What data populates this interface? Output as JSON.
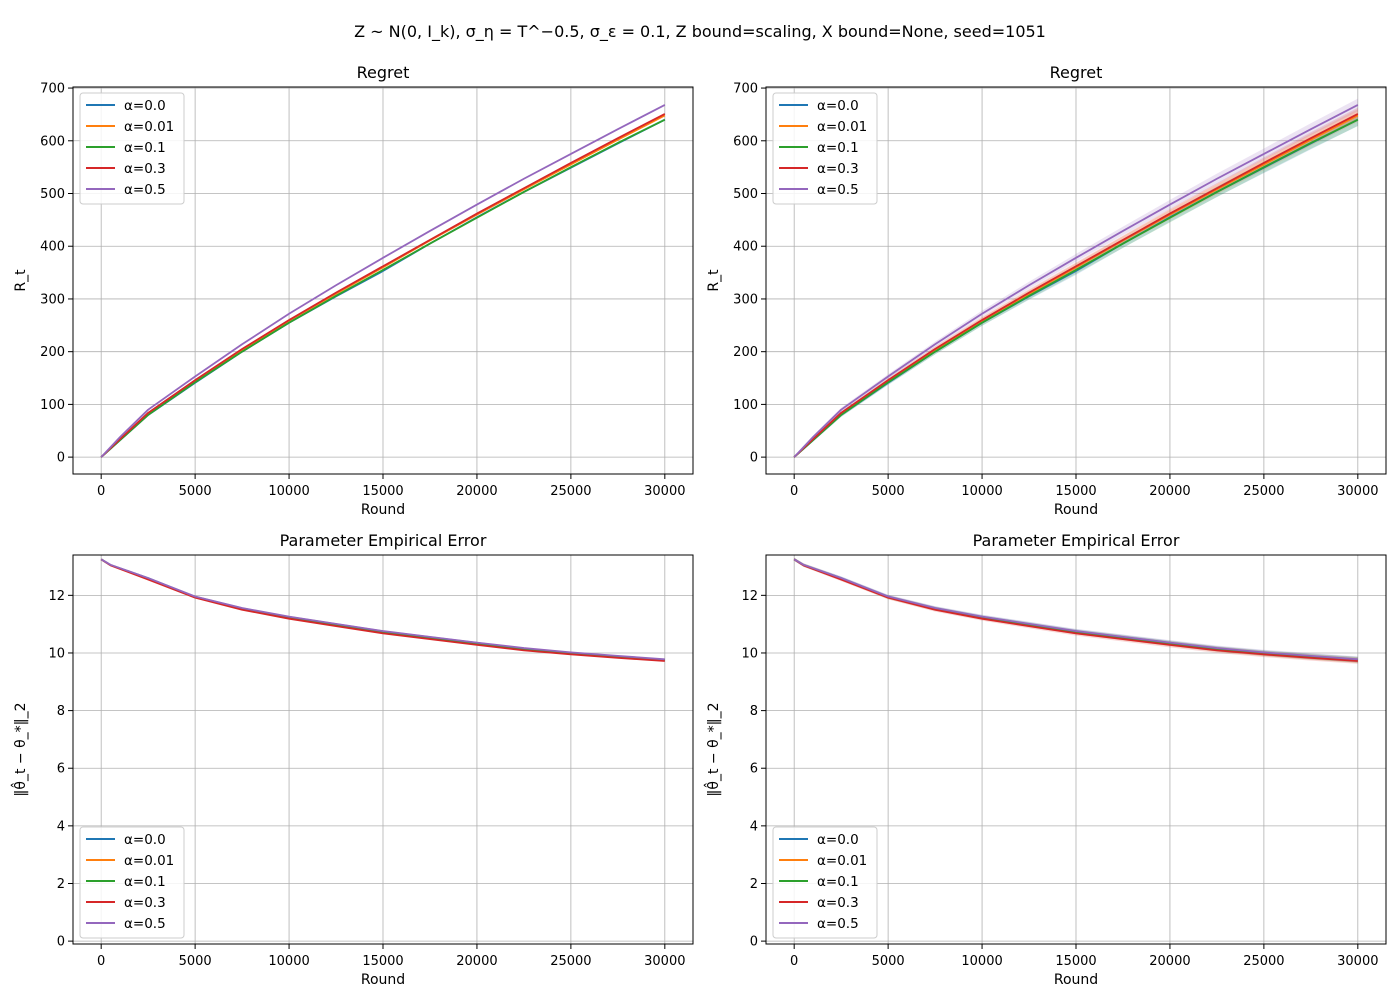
{
  "figure": {
    "suptitle": "Z ~ N(0, I_k), σ_η = T^−0.5, σ_ε = 0.1, Z bound=scaling, X bound=None, seed=1051"
  },
  "colors": {
    "a0": "#1f77b4",
    "a001": "#ff7f0e",
    "a01": "#2ca02c",
    "a03": "#d62728",
    "a05": "#9467bd",
    "grid": "#b0b0b0"
  },
  "chart_data": [
    {
      "type": "line",
      "title": "Regret",
      "xlabel": "Round",
      "ylabel": "R_t",
      "xlim": [
        -1500,
        31500
      ],
      "ylim": [
        -32,
        702
      ],
      "xticks": [
        0,
        5000,
        10000,
        15000,
        20000,
        25000,
        30000
      ],
      "yticks": [
        0,
        100,
        200,
        300,
        400,
        500,
        600,
        700
      ],
      "grid": true,
      "legend": "upper-left",
      "band": false,
      "x": [
        0,
        1000,
        2500,
        5000,
        7500,
        10000,
        12500,
        15000,
        17500,
        20000,
        22500,
        25000,
        27500,
        30000
      ],
      "series": [
        {
          "name": "α=0.0",
          "color": "#1f77b4",
          "values": [
            0,
            32,
            80,
            141,
            200,
            255,
            305,
            353,
            405,
            455,
            503,
            549,
            595,
            640
          ]
        },
        {
          "name": "α=0.01",
          "color": "#ff7f0e",
          "values": [
            0,
            33,
            82,
            144,
            203,
            259,
            310,
            360,
            411,
            460,
            508,
            555,
            602,
            648
          ]
        },
        {
          "name": "α=0.1",
          "color": "#2ca02c",
          "values": [
            0,
            32,
            80,
            142,
            200,
            255,
            306,
            355,
            405,
            454,
            503,
            550,
            596,
            640
          ]
        },
        {
          "name": "α=0.3",
          "color": "#d62728",
          "values": [
            0,
            34,
            84,
            146,
            205,
            260,
            312,
            362,
            412,
            462,
            510,
            558,
            605,
            651
          ]
        },
        {
          "name": "α=0.5",
          "color": "#9467bd",
          "values": [
            0,
            38,
            90,
            153,
            214,
            272,
            326,
            378,
            429,
            479,
            528,
            575,
            622,
            668
          ]
        }
      ]
    },
    {
      "type": "line",
      "title": "Regret",
      "xlabel": "Round",
      "ylabel": "R_t",
      "xlim": [
        -1500,
        31500
      ],
      "ylim": [
        -32,
        702
      ],
      "xticks": [
        0,
        5000,
        10000,
        15000,
        20000,
        25000,
        30000
      ],
      "yticks": [
        0,
        100,
        200,
        300,
        400,
        500,
        600,
        700
      ],
      "grid": true,
      "legend": "upper-left",
      "band": true,
      "x": [
        0,
        1000,
        2500,
        5000,
        7500,
        10000,
        12500,
        15000,
        17500,
        20000,
        22500,
        25000,
        27500,
        30000
      ],
      "series": [
        {
          "name": "α=0.0",
          "color": "#1f77b4",
          "values": [
            0,
            32,
            80,
            141,
            200,
            255,
            305,
            353,
            405,
            455,
            503,
            549,
            595,
            640
          ]
        },
        {
          "name": "α=0.01",
          "color": "#ff7f0e",
          "values": [
            0,
            33,
            82,
            144,
            203,
            259,
            310,
            360,
            411,
            460,
            508,
            555,
            602,
            648
          ]
        },
        {
          "name": "α=0.1",
          "color": "#2ca02c",
          "values": [
            0,
            32,
            80,
            142,
            200,
            255,
            306,
            355,
            405,
            454,
            503,
            550,
            596,
            640
          ]
        },
        {
          "name": "α=0.3",
          "color": "#d62728",
          "values": [
            0,
            34,
            84,
            146,
            205,
            260,
            312,
            362,
            412,
            462,
            510,
            558,
            605,
            651
          ]
        },
        {
          "name": "α=0.5",
          "color": "#9467bd",
          "values": [
            0,
            38,
            90,
            153,
            214,
            272,
            326,
            378,
            429,
            479,
            528,
            575,
            622,
            668
          ]
        }
      ]
    },
    {
      "type": "line",
      "title": "Parameter Empirical Error",
      "xlabel": "Round",
      "ylabel": "‖θ̂_t − θ_*‖_2",
      "xlim": [
        -1500,
        31500
      ],
      "ylim": [
        -0.1,
        13.4
      ],
      "xticks": [
        0,
        5000,
        10000,
        15000,
        20000,
        25000,
        30000
      ],
      "yticks": [
        0,
        2,
        4,
        6,
        8,
        10,
        12
      ],
      "grid": true,
      "legend": "lower-left",
      "band": false,
      "x": [
        0,
        500,
        2500,
        5000,
        7500,
        10000,
        12500,
        15000,
        17500,
        20000,
        22500,
        25000,
        27500,
        30000
      ],
      "series": [
        {
          "name": "α=0.0",
          "color": "#1f77b4",
          "values": [
            13.25,
            13.05,
            12.6,
            11.95,
            11.55,
            11.25,
            11.0,
            10.75,
            10.55,
            10.35,
            10.15,
            10.0,
            9.88,
            9.77
          ]
        },
        {
          "name": "α=0.01",
          "color": "#ff7f0e",
          "values": [
            13.25,
            13.05,
            12.58,
            11.93,
            11.53,
            11.22,
            10.97,
            10.72,
            10.52,
            10.32,
            10.13,
            9.98,
            9.86,
            9.75
          ]
        },
        {
          "name": "α=0.1",
          "color": "#2ca02c",
          "values": [
            13.25,
            13.05,
            12.58,
            11.94,
            11.54,
            11.23,
            10.98,
            10.73,
            10.53,
            10.33,
            10.14,
            9.99,
            9.87,
            9.76
          ]
        },
        {
          "name": "α=0.3",
          "color": "#d62728",
          "values": [
            13.25,
            13.04,
            12.55,
            11.92,
            11.5,
            11.19,
            10.93,
            10.68,
            10.48,
            10.28,
            10.09,
            9.95,
            9.83,
            9.72
          ]
        },
        {
          "name": "α=0.5",
          "color": "#9467bd",
          "values": [
            13.25,
            13.06,
            12.6,
            11.96,
            11.56,
            11.26,
            11.01,
            10.76,
            10.56,
            10.36,
            10.17,
            10.02,
            9.9,
            9.78
          ]
        }
      ]
    },
    {
      "type": "line",
      "title": "Parameter Empirical Error",
      "xlabel": "Round",
      "ylabel": "‖θ̂_t − θ_*‖_2",
      "xlim": [
        -1500,
        31500
      ],
      "ylim": [
        -0.1,
        13.4
      ],
      "xticks": [
        0,
        5000,
        10000,
        15000,
        20000,
        25000,
        30000
      ],
      "yticks": [
        0,
        2,
        4,
        6,
        8,
        10,
        12
      ],
      "grid": true,
      "legend": "lower-left",
      "band": true,
      "x": [
        0,
        500,
        2500,
        5000,
        7500,
        10000,
        12500,
        15000,
        17500,
        20000,
        22500,
        25000,
        27500,
        30000
      ],
      "series": [
        {
          "name": "α=0.0",
          "color": "#1f77b4",
          "values": [
            13.25,
            13.05,
            12.6,
            11.95,
            11.55,
            11.25,
            11.0,
            10.75,
            10.55,
            10.35,
            10.15,
            10.0,
            9.88,
            9.77
          ]
        },
        {
          "name": "α=0.01",
          "color": "#ff7f0e",
          "values": [
            13.25,
            13.05,
            12.58,
            11.93,
            11.53,
            11.22,
            10.97,
            10.72,
            10.52,
            10.32,
            10.13,
            9.98,
            9.86,
            9.75
          ]
        },
        {
          "name": "α=0.1",
          "color": "#2ca02c",
          "values": [
            13.25,
            13.05,
            12.58,
            11.94,
            11.54,
            11.23,
            10.98,
            10.73,
            10.53,
            10.33,
            10.14,
            9.99,
            9.87,
            9.76
          ]
        },
        {
          "name": "α=0.3",
          "color": "#d62728",
          "values": [
            13.25,
            13.04,
            12.55,
            11.92,
            11.5,
            11.19,
            10.93,
            10.68,
            10.48,
            10.28,
            10.09,
            9.95,
            9.83,
            9.72
          ]
        },
        {
          "name": "α=0.5",
          "color": "#9467bd",
          "values": [
            13.25,
            13.06,
            12.6,
            11.96,
            11.56,
            11.26,
            11.01,
            10.76,
            10.56,
            10.36,
            10.17,
            10.02,
            9.9,
            9.78
          ]
        }
      ]
    }
  ]
}
